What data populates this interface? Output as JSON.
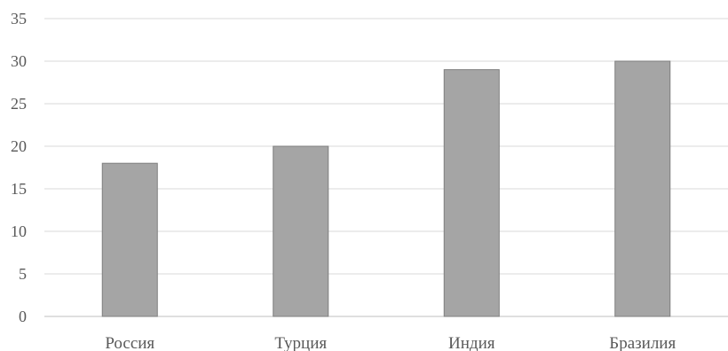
{
  "chart_data": {
    "type": "bar",
    "categories": [
      "Россия",
      "Турция",
      "Индия",
      "Бразилия"
    ],
    "values": [
      18,
      20,
      29,
      30
    ],
    "title": "",
    "xlabel": "",
    "ylabel": "",
    "ylim": [
      0,
      35
    ],
    "yticks": [
      0,
      5,
      10,
      15,
      20,
      25,
      30,
      35
    ],
    "grid": true,
    "legend": "none",
    "colors": {
      "bar_fill": "#a5a5a5",
      "bar_stroke": "#7f7f7f",
      "grid": "#d9d9d9",
      "axis": "#bfbfbf",
      "text": "#595959"
    }
  }
}
